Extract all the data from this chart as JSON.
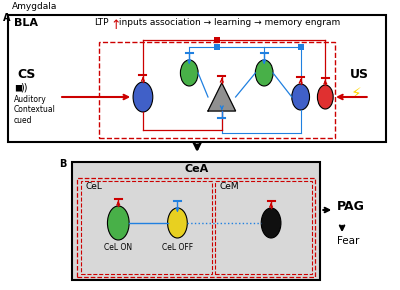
{
  "title": "Amygdala",
  "ltp_text": "LTP",
  "up_arrow_red": "↑",
  "inputs_text": " inputs association → learning → memory engram",
  "cs_label": "CS",
  "cs_sub": "Auditory\nContextual\ncued",
  "us_label": "US",
  "cea_label": "CeA",
  "cel_label": "CeL",
  "cem_label": "CeM",
  "cel_on": "CeL ON",
  "cel_off": "CeL OFF",
  "pag_label": "PAG",
  "fear_label": "Fear",
  "green_color": "#48B048",
  "blue_cell_color": "#4060C8",
  "red_cell_color": "#E03030",
  "yellow_color": "#E8D020",
  "black_color": "#101010",
  "gray_triangle": "#909090",
  "red_line": "#CC0000",
  "blue_line": "#2080E0",
  "bg_gray": "#D8D8D8",
  "bg_white": "#FFFFFF"
}
